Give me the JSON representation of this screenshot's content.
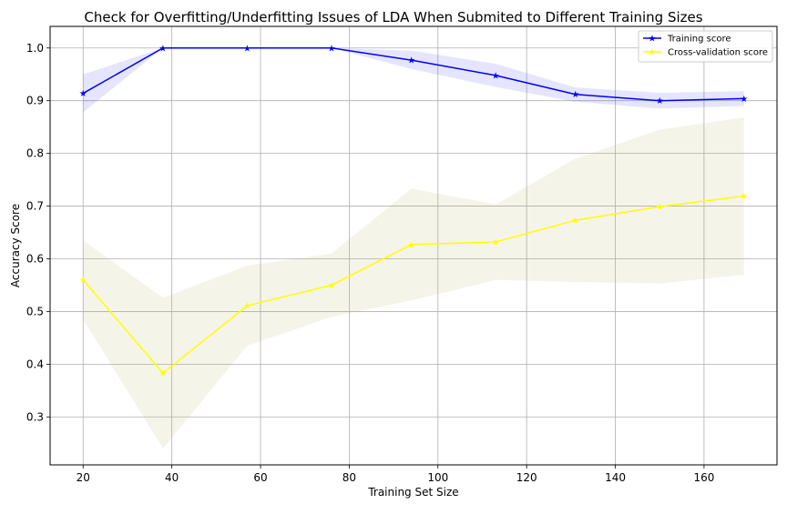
{
  "chart_data": {
    "type": "line",
    "title": "Check for Overfitting/Underfitting Issues of LDA When Submited to Different Training Sizes",
    "xlabel": "Training Set Size",
    "ylabel": "Accuracy Score",
    "xlim": [
      12.55,
      176.45
    ],
    "ylim": [
      0.209,
      1.041
    ],
    "xticks": [
      20,
      40,
      60,
      80,
      100,
      120,
      140,
      160
    ],
    "yticks": [
      0.3,
      0.4,
      0.5,
      0.6,
      0.7,
      0.8,
      0.9,
      1.0
    ],
    "ytick_labels": [
      "0.3",
      "0.4",
      "0.5",
      "0.6",
      "0.7",
      "0.8",
      "0.9",
      "1.0"
    ],
    "grid": true,
    "legend_position": "top-right",
    "x": [
      20,
      38,
      57,
      76,
      94,
      113,
      131,
      150,
      169
    ],
    "series": [
      {
        "name": "Training score",
        "color": "#0000ff",
        "band_color": "#0000ff",
        "marker": "star",
        "values": [
          0.914,
          1.0,
          1.0,
          1.0,
          0.977,
          0.948,
          0.912,
          0.9,
          0.904
        ],
        "band_upper": [
          0.95,
          1.0,
          1.0,
          1.0,
          0.995,
          0.97,
          0.925,
          0.915,
          0.918
        ],
        "band_lower": [
          0.878,
          1.0,
          1.0,
          1.0,
          0.96,
          0.926,
          0.898,
          0.885,
          0.89
        ]
      },
      {
        "name": "Cross-validation score",
        "color": "#ffff00",
        "band_color": "#bdb76b",
        "marker": "star",
        "values": [
          0.56,
          0.383,
          0.511,
          0.55,
          0.627,
          0.632,
          0.673,
          0.699,
          0.719
        ],
        "band_upper": [
          0.635,
          0.526,
          0.587,
          0.61,
          0.733,
          0.703,
          0.79,
          0.845,
          0.868
        ],
        "band_lower": [
          0.485,
          0.24,
          0.435,
          0.49,
          0.521,
          0.56,
          0.556,
          0.553,
          0.57
        ]
      }
    ]
  }
}
